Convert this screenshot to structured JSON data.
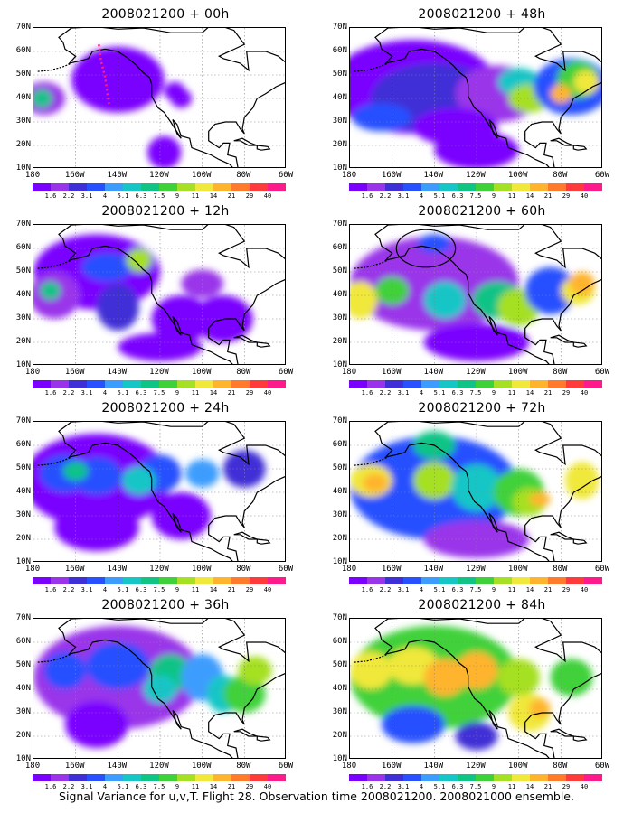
{
  "panels": [
    {
      "title": "2008021200 + 00h"
    },
    {
      "title": "2008021200 + 48h"
    },
    {
      "title": "2008021200 + 12h"
    },
    {
      "title": "2008021200 + 60h"
    },
    {
      "title": "2008021200 + 24h"
    },
    {
      "title": "2008021200 + 72h"
    },
    {
      "title": "2008021200 + 36h"
    },
    {
      "title": "2008021200 + 84h"
    }
  ],
  "lat_labels": [
    "70N",
    "60N",
    "50N",
    "40N",
    "30N",
    "20N",
    "10N"
  ],
  "lon_labels": [
    "180",
    "160W",
    "140W",
    "120W",
    "100W",
    "80W",
    "60W"
  ],
  "colorbar": {
    "levels": [
      "1.6",
      "2.2",
      "3.1",
      "4",
      "5.1",
      "6.3",
      "7.5",
      "9",
      "11",
      "14",
      "21",
      "29",
      "40"
    ],
    "colors": [
      "#7a00ff",
      "#9a34ea",
      "#3f2fd6",
      "#2850ff",
      "#3c9dff",
      "#16c6c6",
      "#10c486",
      "#3fd13a",
      "#a6e024",
      "#f0e83a",
      "#ffb42e",
      "#ff7a2a",
      "#ff3a3a",
      "#ff1a8c"
    ]
  },
  "footer": "Signal Variance for u,v,T. Flight 28. Observation time 2008021200. 2008021000 ensemble."
}
